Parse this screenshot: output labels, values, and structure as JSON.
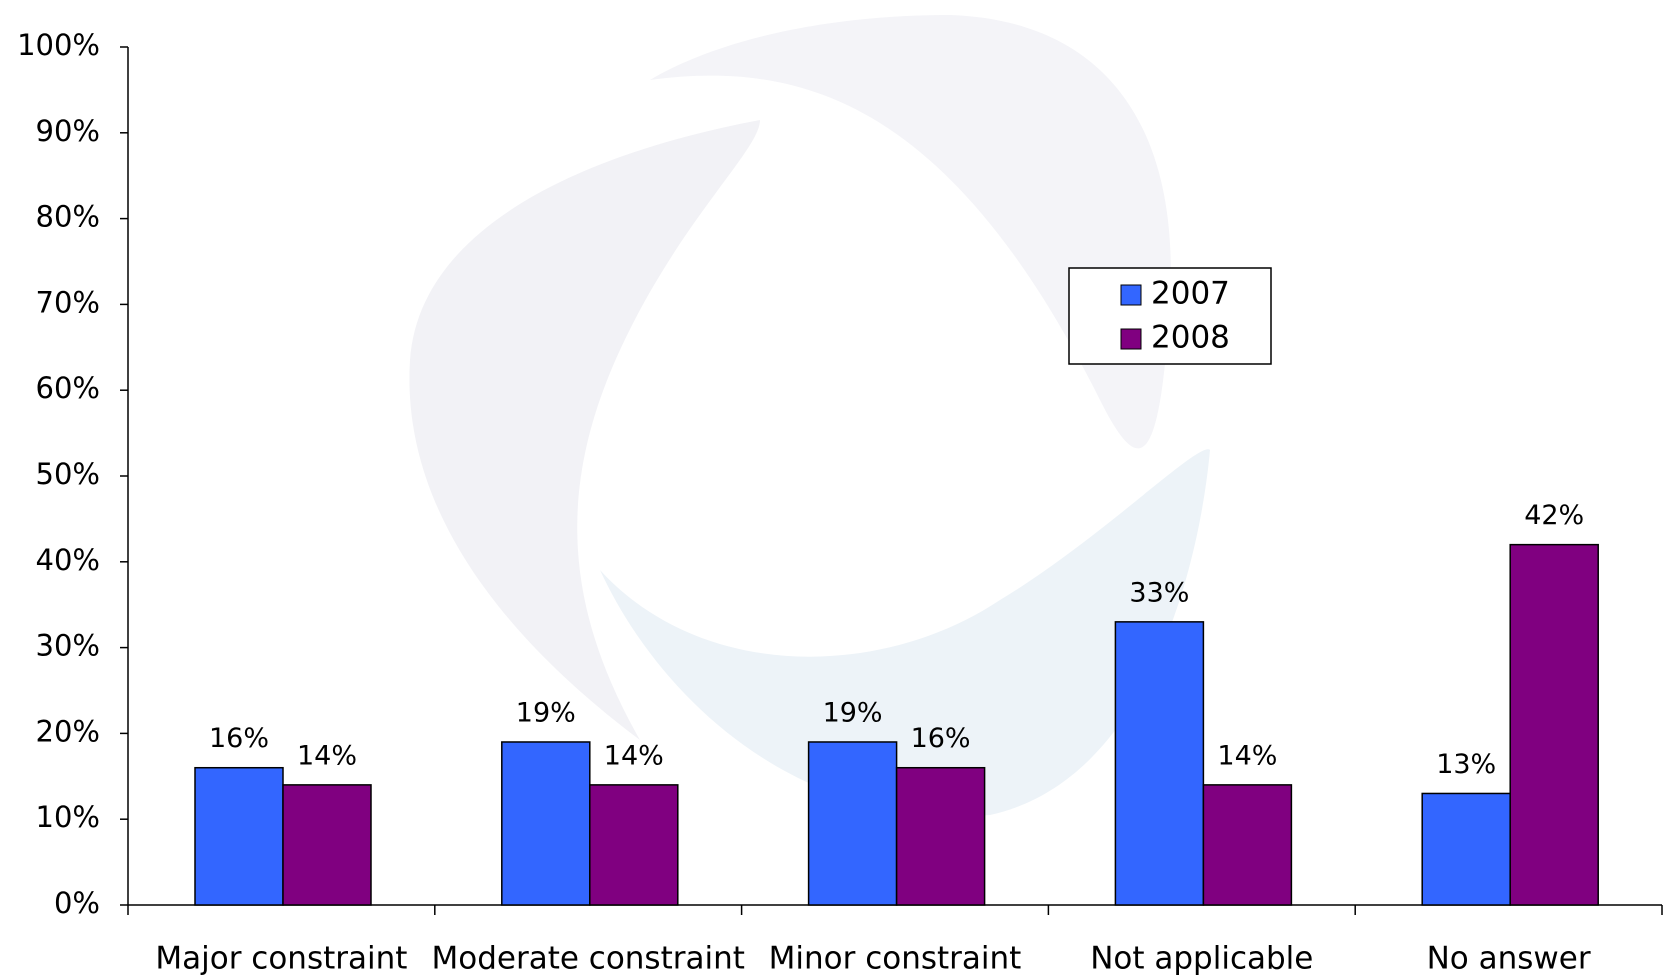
{
  "chart_data": {
    "type": "bar",
    "categories": [
      "Major constraint",
      "Moderate constraint",
      "Minor constraint",
      "Not applicable",
      "No answer"
    ],
    "series": [
      {
        "name": "2007",
        "color": "#3366ff",
        "values": [
          16,
          19,
          19,
          33,
          13
        ],
        "value_labels": [
          "16%",
          "19%",
          "19%",
          "33%",
          "13%"
        ]
      },
      {
        "name": "2008",
        "color": "#800080",
        "values": [
          14,
          14,
          16,
          14,
          42
        ],
        "value_labels": [
          "14%",
          "14%",
          "16%",
          "14%",
          "42%"
        ]
      }
    ],
    "ylim": [
      0,
      100
    ],
    "yticks": [
      {
        "value": 0,
        "label": "0%"
      },
      {
        "value": 10,
        "label": "10%"
      },
      {
        "value": 20,
        "label": "20%"
      },
      {
        "value": 30,
        "label": "30%"
      },
      {
        "value": 40,
        "label": "40%"
      },
      {
        "value": 50,
        "label": "50%"
      },
      {
        "value": 60,
        "label": "60%"
      },
      {
        "value": 70,
        "label": "70%"
      },
      {
        "value": 80,
        "label": "80%"
      },
      {
        "value": 90,
        "label": "90%"
      },
      {
        "value": 100,
        "label": "100%"
      }
    ],
    "grid": false,
    "legend": "upper-right"
  }
}
